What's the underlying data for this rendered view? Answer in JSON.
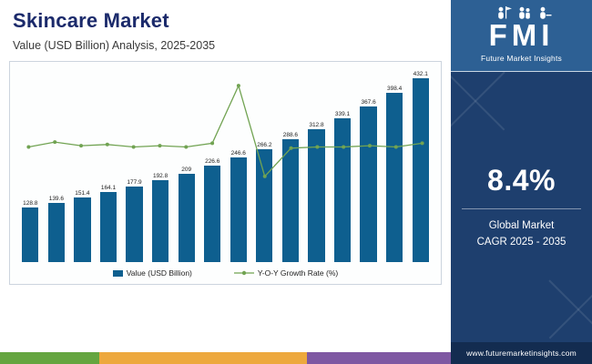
{
  "header": {
    "title": "Skincare Market",
    "subtitle": "Value (USD Billion) Analysis, 2025-2035"
  },
  "sidebar": {
    "logo_text": "FMI",
    "logo_subtitle": "Future Market Insights",
    "cagr_value": "8.4%",
    "cagr_label_line1": "Global Market",
    "cagr_label_line2": "CAGR 2025 - 2035",
    "website": "www.futuremarketinsights.com",
    "colors": {
      "logo_bg": "#2d6094",
      "body_bg": "#1e3f6e",
      "footer_bg": "#132c50"
    }
  },
  "chart_data": {
    "type": "bar",
    "title": "Skincare Market Value (USD Billion) Analysis, 2025-2035",
    "categories": [
      "",
      "",
      "",
      "",
      "",
      "",
      "",
      "",
      "",
      "",
      "",
      "",
      "",
      "",
      "",
      ""
    ],
    "values": [
      128.8,
      139.6,
      151.4,
      164.1,
      177.9,
      192.8,
      209,
      226.6,
      246.6,
      266.2,
      288.6,
      312.8,
      339.1,
      367.6,
      398.4,
      432.1
    ],
    "value_labels": [
      "128.8",
      "139.6",
      "151.4",
      "164.1",
      "177.9",
      "192.8",
      "209",
      "226.6",
      "246.6",
      "266.2",
      "288.6",
      "312.8",
      "339.1",
      "367.6",
      "398.4",
      "432.1"
    ],
    "series": [
      {
        "name": "Value (USD Billion)",
        "type": "bar",
        "values": [
          128.8,
          139.6,
          151.4,
          164.1,
          177.9,
          192.8,
          209,
          226.6,
          246.6,
          266.2,
          288.6,
          312.8,
          339.1,
          367.6,
          398.4,
          432.1
        ]
      },
      {
        "name": "Y-O-Y Growth Rate (%)",
        "type": "line",
        "values_estimated": [
          8.4,
          8.6,
          8.45,
          8.5,
          8.4,
          8.45,
          8.4,
          8.55,
          10.9,
          7.2,
          8.35,
          8.4,
          8.4,
          8.45,
          8.4,
          8.55
        ]
      }
    ],
    "legend": {
      "bar": "Value (USD Billion)",
      "line": "Y-O-Y Growth Rate (%)"
    },
    "ylim": [
      0,
      450
    ],
    "y2lim_estimated": [
      3.7,
      11.5
    ],
    "grid": "off",
    "legend_position": "bottom",
    "bar_color": "#0e5f8f",
    "line_color": "#71a352"
  },
  "footer_stripe_colors": [
    "#64a53f",
    "#eda83d",
    "#7e57a2"
  ]
}
